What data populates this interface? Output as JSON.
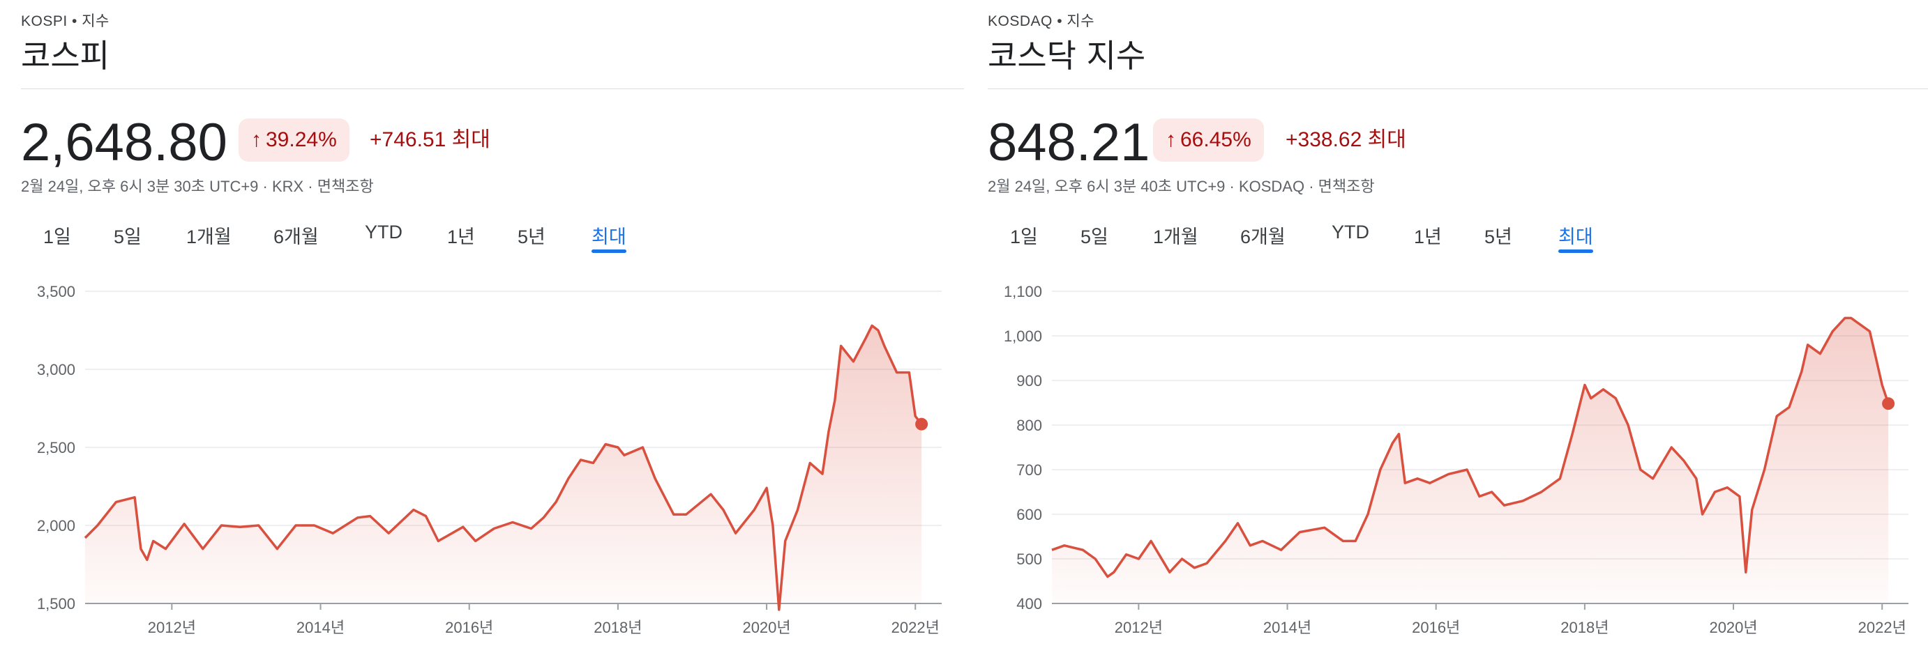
{
  "colors": {
    "line": "#d9503f",
    "positive": "#a50e0e",
    "badge_bg": "#fce8e6",
    "active_tab": "#1a73e8",
    "grid": "#e8eaed"
  },
  "tab_labels": [
    "1일",
    "5일",
    "1개월",
    "6개월",
    "YTD",
    "1년",
    "5년",
    "최대"
  ],
  "active_tab": "최대",
  "icons": {
    "change_arrow": "arrow-up-icon"
  },
  "panels": [
    {
      "exchange": "KOSPI • 지수",
      "title": "코스피",
      "price": "2,648.80",
      "pct_change": "39.24%",
      "abs_change": "+746.51 최대",
      "meta": "2월 24일, 오후 6시 3분 30초 UTC+9 · KRX · 면책조항"
    },
    {
      "exchange": "KOSDAQ • 지수",
      "title": "코스닥 지수",
      "price": "848.21",
      "pct_change": "66.45%",
      "abs_change": "+338.62 최대",
      "meta": "2월 24일, 오후 6시 3분 40초 UTC+9 · KOSDAQ · 면책조항"
    }
  ],
  "chart_data": [
    {
      "type": "area",
      "title": "",
      "xlabel": "",
      "ylabel": "",
      "xlim": [
        "2010-11",
        "2022-03"
      ],
      "ylim": [
        1500,
        3500
      ],
      "y_ticks": [
        3500,
        3000,
        2500,
        2000,
        1500
      ],
      "y_tick_labels": [
        "3,500",
        "3,000",
        "2,500",
        "2,000",
        "1,500"
      ],
      "x_tick_labels": [
        "2012년",
        "2014년",
        "2016년",
        "2018년",
        "2020년",
        "2022년"
      ],
      "x_tick_dates": [
        "2012-01",
        "2014-01",
        "2016-01",
        "2018-01",
        "2020-01",
        "2022-01"
      ],
      "grid": true,
      "series": [
        {
          "x": [
            "2010-11",
            "2011-01",
            "2011-04",
            "2011-07",
            "2011-08",
            "2011-09",
            "2011-10",
            "2011-12",
            "2012-03",
            "2012-06",
            "2012-09",
            "2012-12",
            "2013-03",
            "2013-06",
            "2013-09",
            "2013-12",
            "2014-03",
            "2014-07",
            "2014-09",
            "2014-12",
            "2015-04",
            "2015-06",
            "2015-08",
            "2015-12",
            "2016-02",
            "2016-05",
            "2016-08",
            "2016-11",
            "2017-01",
            "2017-03",
            "2017-05",
            "2017-07",
            "2017-09",
            "2017-11",
            "2018-01",
            "2018-02",
            "2018-05",
            "2018-07",
            "2018-10",
            "2018-12",
            "2019-04",
            "2019-06",
            "2019-08",
            "2019-11",
            "2020-01",
            "2020-02",
            "2020-03",
            "2020-04",
            "2020-06",
            "2020-08",
            "2020-10",
            "2020-11",
            "2020-12",
            "2021-01",
            "2021-03",
            "2021-05",
            "2021-06",
            "2021-07",
            "2021-08",
            "2021-10",
            "2021-12",
            "2022-01",
            "2022-02"
          ],
          "y": [
            1920,
            2000,
            2150,
            2180,
            1850,
            1780,
            1900,
            1850,
            2010,
            1850,
            2000,
            1990,
            2000,
            1850,
            2000,
            2000,
            1950,
            2050,
            2060,
            1950,
            2100,
            2060,
            1900,
            1990,
            1900,
            1980,
            2020,
            1980,
            2050,
            2150,
            2300,
            2420,
            2400,
            2520,
            2500,
            2450,
            2500,
            2300,
            2070,
            2070,
            2200,
            2100,
            1950,
            2100,
            2240,
            2000,
            1460,
            1900,
            2100,
            2400,
            2330,
            2600,
            2800,
            3150,
            3050,
            3200,
            3280,
            3250,
            3150,
            2980,
            2980,
            2700,
            2648.8
          ]
        }
      ]
    },
    {
      "type": "area",
      "title": "",
      "xlabel": "",
      "ylabel": "",
      "xlim": [
        "2010-11",
        "2022-03"
      ],
      "ylim": [
        400,
        1100
      ],
      "y_ticks": [
        1100,
        1000,
        900,
        800,
        700,
        600,
        500,
        400
      ],
      "y_tick_labels": [
        "1,100",
        "1,000",
        "900",
        "800",
        "700",
        "600",
        "500",
        "400"
      ],
      "x_tick_labels": [
        "2012년",
        "2014년",
        "2016년",
        "2018년",
        "2020년",
        "2022년"
      ],
      "x_tick_dates": [
        "2012-01",
        "2014-01",
        "2016-01",
        "2018-01",
        "2020-01",
        "2022-01"
      ],
      "grid": true,
      "series": [
        {
          "x": [
            "2010-11",
            "2011-01",
            "2011-04",
            "2011-06",
            "2011-08",
            "2011-09",
            "2011-11",
            "2012-01",
            "2012-03",
            "2012-06",
            "2012-08",
            "2012-10",
            "2012-12",
            "2013-03",
            "2013-05",
            "2013-07",
            "2013-09",
            "2013-12",
            "2014-03",
            "2014-07",
            "2014-10",
            "2014-12",
            "2015-02",
            "2015-04",
            "2015-06",
            "2015-07",
            "2015-08",
            "2015-10",
            "2015-12",
            "2016-03",
            "2016-06",
            "2016-08",
            "2016-10",
            "2016-12",
            "2017-03",
            "2017-06",
            "2017-09",
            "2017-11",
            "2018-01",
            "2018-02",
            "2018-04",
            "2018-06",
            "2018-08",
            "2018-10",
            "2018-12",
            "2019-03",
            "2019-05",
            "2019-07",
            "2019-08",
            "2019-10",
            "2019-12",
            "2020-02",
            "2020-03",
            "2020-04",
            "2020-06",
            "2020-08",
            "2020-10",
            "2020-12",
            "2021-01",
            "2021-03",
            "2021-05",
            "2021-07",
            "2021-08",
            "2021-10",
            "2021-11",
            "2021-12",
            "2022-01",
            "2022-02"
          ],
          "y": [
            520,
            530,
            520,
            500,
            460,
            470,
            510,
            500,
            540,
            470,
            500,
            480,
            490,
            540,
            580,
            530,
            540,
            520,
            560,
            570,
            540,
            540,
            600,
            700,
            760,
            780,
            670,
            680,
            670,
            690,
            700,
            640,
            650,
            620,
            630,
            650,
            680,
            780,
            890,
            860,
            880,
            860,
            800,
            700,
            680,
            750,
            720,
            680,
            600,
            650,
            660,
            640,
            470,
            610,
            700,
            820,
            840,
            920,
            980,
            960,
            1010,
            1040,
            1040,
            1020,
            1010,
            950,
            890,
            848.21
          ]
        }
      ]
    }
  ]
}
